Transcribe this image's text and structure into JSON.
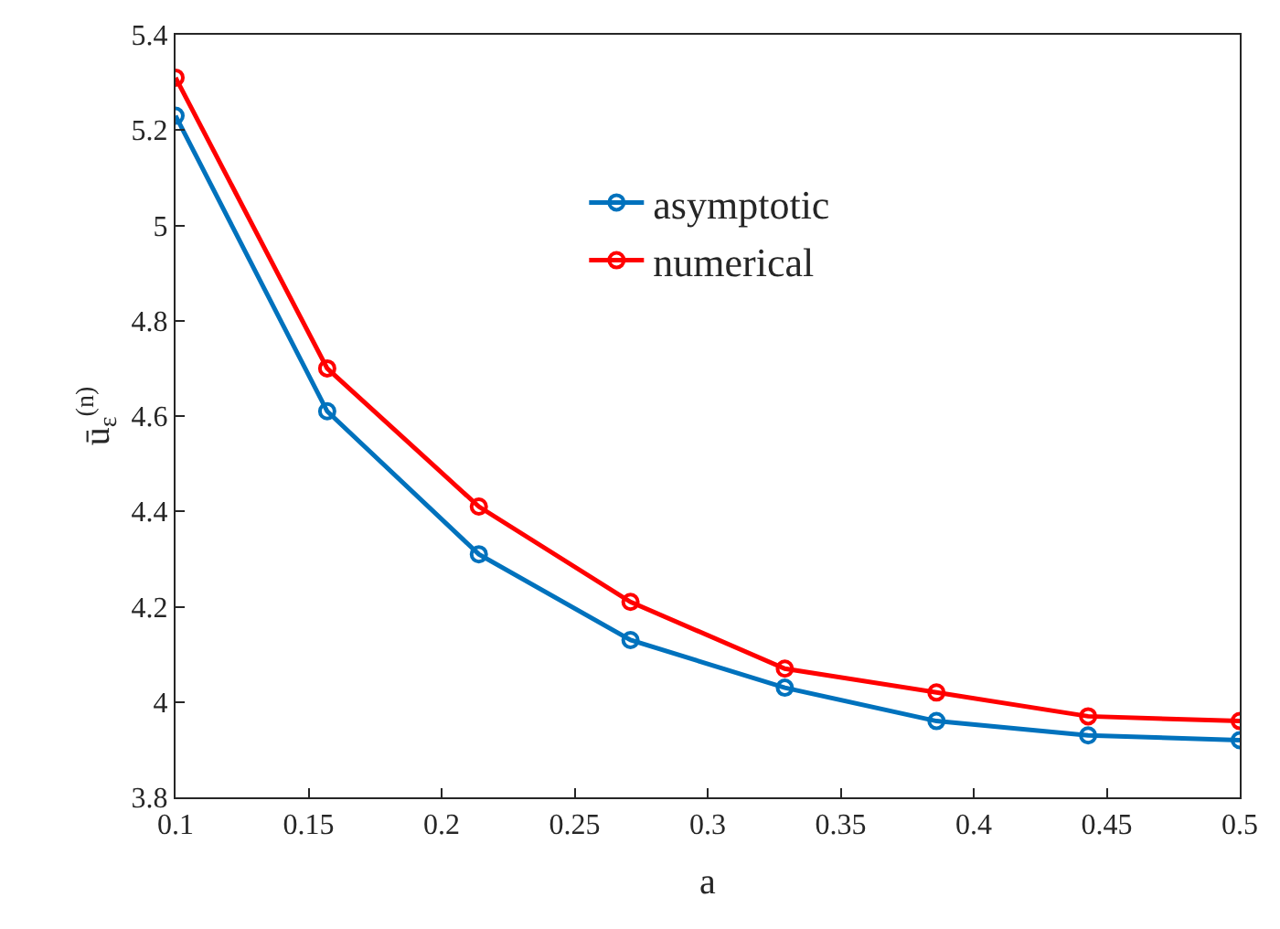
{
  "chart_data": {
    "type": "line",
    "xlabel": "a",
    "ylabel": "ū$_{ε}$$^{(n)}$",
    "x": [
      0.1,
      0.157,
      0.214,
      0.271,
      0.329,
      0.386,
      0.443,
      0.5
    ],
    "series": [
      {
        "name": "asymptotic",
        "color": "#0072bd",
        "values": [
          5.23,
          4.61,
          4.31,
          4.13,
          4.03,
          3.96,
          3.93,
          3.92
        ]
      },
      {
        "name": "numerical",
        "color": "#ff0000",
        "values": [
          5.31,
          4.7,
          4.41,
          4.21,
          4.07,
          4.02,
          3.97,
          3.96
        ]
      }
    ],
    "xlim": [
      0.1,
      0.5
    ],
    "xticks": [
      0.1,
      0.15,
      0.2,
      0.25,
      0.3,
      0.35,
      0.4,
      0.45,
      0.5
    ],
    "ylim": [
      3.8,
      5.4
    ],
    "yticks": [
      3.8,
      4,
      4.2,
      4.4,
      4.6,
      4.8,
      5,
      5.2,
      5.4
    ],
    "legend": "top",
    "marker": "circle",
    "line_style": "solid"
  }
}
